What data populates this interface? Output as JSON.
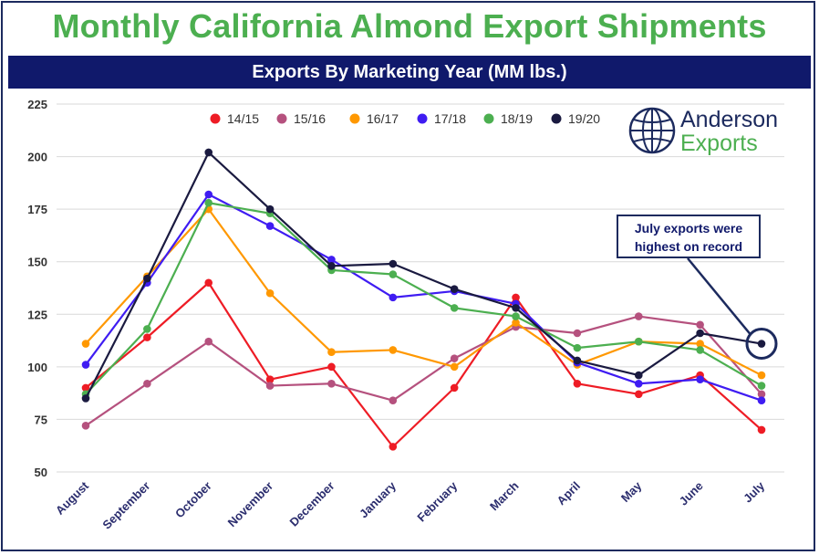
{
  "title": "Monthly California Almond Export Shipments",
  "subtitle": "Exports By Marketing Year  (MM lbs.)",
  "logo": {
    "line1": "Anderson",
    "line2": "Exports",
    "icon": "globe-icon"
  },
  "callout": {
    "line1": "July exports were",
    "line2": "highest on record"
  },
  "colors": {
    "title": "#4caf50",
    "banner": "#10196b",
    "accent": "#1c2a5e"
  },
  "chart_data": {
    "type": "line",
    "title": "Exports By Marketing Year  (MM lbs.)",
    "xlabel": "",
    "ylabel": "",
    "ylim": [
      50,
      225
    ],
    "yticks": [
      50,
      75,
      100,
      125,
      150,
      175,
      200,
      225
    ],
    "grid": true,
    "legend_position": "top",
    "categories": [
      "August",
      "September",
      "October",
      "November",
      "December",
      "January",
      "February",
      "March",
      "April",
      "May",
      "June",
      "July"
    ],
    "series": [
      {
        "name": "14/15",
        "color": "#ee1c25",
        "values": [
          90,
          114,
          140,
          94,
          100,
          62,
          90,
          133,
          92,
          87,
          96,
          70
        ]
      },
      {
        "name": "15/16",
        "color": "#b5517e",
        "values": [
          72,
          92,
          112,
          91,
          92,
          84,
          104,
          119,
          116,
          124,
          120,
          87
        ]
      },
      {
        "name": "16/17",
        "color": "#ff9800",
        "values": [
          111,
          143,
          175,
          135,
          107,
          108,
          100,
          121,
          101,
          112,
          111,
          96
        ]
      },
      {
        "name": "17/18",
        "color": "#3f1cf2",
        "values": [
          101,
          140,
          182,
          167,
          151,
          133,
          136,
          130,
          102,
          92,
          94,
          84
        ]
      },
      {
        "name": "18/19",
        "color": "#4caf50",
        "values": [
          87,
          118,
          178,
          173,
          146,
          144,
          128,
          124,
          109,
          112,
          108,
          91
        ]
      },
      {
        "name": "19/20",
        "color": "#1a1a40",
        "values": [
          85,
          142,
          202,
          175,
          148,
          149,
          137,
          128,
          103,
          96,
          116,
          111
        ]
      }
    ]
  }
}
